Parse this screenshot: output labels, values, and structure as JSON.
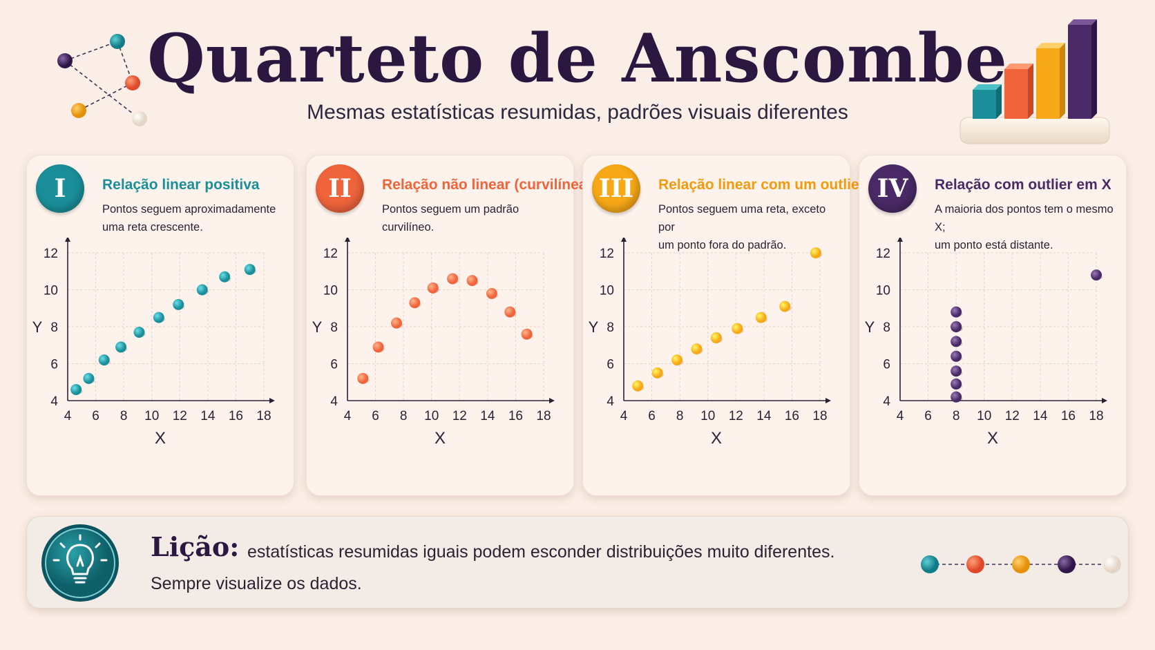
{
  "header": {
    "title": "Quarteto de Anscombe",
    "subtitle": "Mesmas estatísticas resumidas, padrões visuais diferentes"
  },
  "colors": {
    "teal": "#1a8f9a",
    "orange": "#f0643c",
    "yellow": "#f7a816",
    "purple": "#4a2a66",
    "cream": "#f6ede2"
  },
  "cards": [
    {
      "badge": "I",
      "heading": "Relação linear positiva",
      "description_lines": [
        "Pontos seguem aproximadamente",
        "uma reta crescente."
      ]
    },
    {
      "badge": "II",
      "heading": "Relação não linear (curvilínea)",
      "description_lines": [
        "Pontos seguem um padrão curvilíneo.",
        ""
      ]
    },
    {
      "badge": "III",
      "heading": "Relação linear com um outlier",
      "description_lines": [
        "Pontos seguem uma reta, exceto por",
        "um ponto fora do padrão."
      ]
    },
    {
      "badge": "IV",
      "heading": "Relação com outlier em X",
      "description_lines": [
        "A maioria dos pontos tem o mesmo X;",
        "um ponto está distante."
      ]
    }
  ],
  "chart_data": [
    {
      "type": "scatter",
      "color": "#1a8f9a",
      "xlabel": "X",
      "ylabel": "Y",
      "xlim": [
        4,
        18
      ],
      "ylim": [
        4,
        12
      ],
      "xticks": [
        4,
        6,
        8,
        10,
        12,
        14,
        16,
        18
      ],
      "yticks": [
        4,
        6,
        8,
        10,
        12
      ],
      "grid": true,
      "x": [
        4.6,
        5.5,
        6.6,
        7.8,
        9.1,
        10.5,
        11.9,
        13.6,
        15.2,
        17.0
      ],
      "y": [
        4.6,
        5.2,
        6.2,
        6.9,
        7.7,
        8.5,
        9.2,
        10.0,
        10.7,
        11.1
      ]
    },
    {
      "type": "scatter",
      "color": "#f0643c",
      "xlabel": "X",
      "ylabel": "Y",
      "xlim": [
        4,
        18
      ],
      "ylim": [
        4,
        12
      ],
      "xticks": [
        4,
        6,
        8,
        10,
        12,
        14,
        16,
        18
      ],
      "yticks": [
        4,
        6,
        8,
        10,
        12
      ],
      "grid": true,
      "x": [
        5.1,
        6.2,
        7.5,
        8.8,
        10.1,
        11.5,
        12.9,
        14.3,
        15.6,
        16.8
      ],
      "y": [
        5.2,
        6.9,
        8.2,
        9.3,
        10.1,
        10.6,
        10.5,
        9.8,
        8.8,
        7.6
      ]
    },
    {
      "type": "scatter",
      "color": "#f7a816",
      "xlabel": "X",
      "ylabel": "Y",
      "xlim": [
        4,
        18
      ],
      "ylim": [
        4,
        12
      ],
      "xticks": [
        4,
        6,
        8,
        10,
        12,
        14,
        16,
        18
      ],
      "yticks": [
        4,
        6,
        8,
        10,
        12
      ],
      "grid": true,
      "x": [
        5.0,
        6.4,
        7.8,
        9.2,
        10.6,
        12.1,
        13.8,
        15.5,
        17.7
      ],
      "y": [
        4.8,
        5.5,
        6.2,
        6.8,
        7.4,
        7.9,
        8.5,
        9.1,
        12.0
      ]
    },
    {
      "type": "scatter",
      "color": "#4a2a66",
      "xlabel": "X",
      "ylabel": "Y",
      "xlim": [
        4,
        18
      ],
      "ylim": [
        4,
        12
      ],
      "xticks": [
        4,
        6,
        8,
        10,
        12,
        14,
        16,
        18
      ],
      "yticks": [
        4,
        6,
        8,
        10,
        12
      ],
      "grid": true,
      "x": [
        8,
        8,
        8,
        8,
        8,
        8,
        8,
        8,
        18
      ],
      "y": [
        4.2,
        4.9,
        5.6,
        6.4,
        7.2,
        8.0,
        8.8,
        8.0,
        10.8
      ]
    }
  ],
  "lesson": {
    "heading": "Lição:",
    "text": "estatísticas resumidas iguais podem esconder distribuições muito diferentes.",
    "text_2": "Sempre visualize os dados."
  }
}
